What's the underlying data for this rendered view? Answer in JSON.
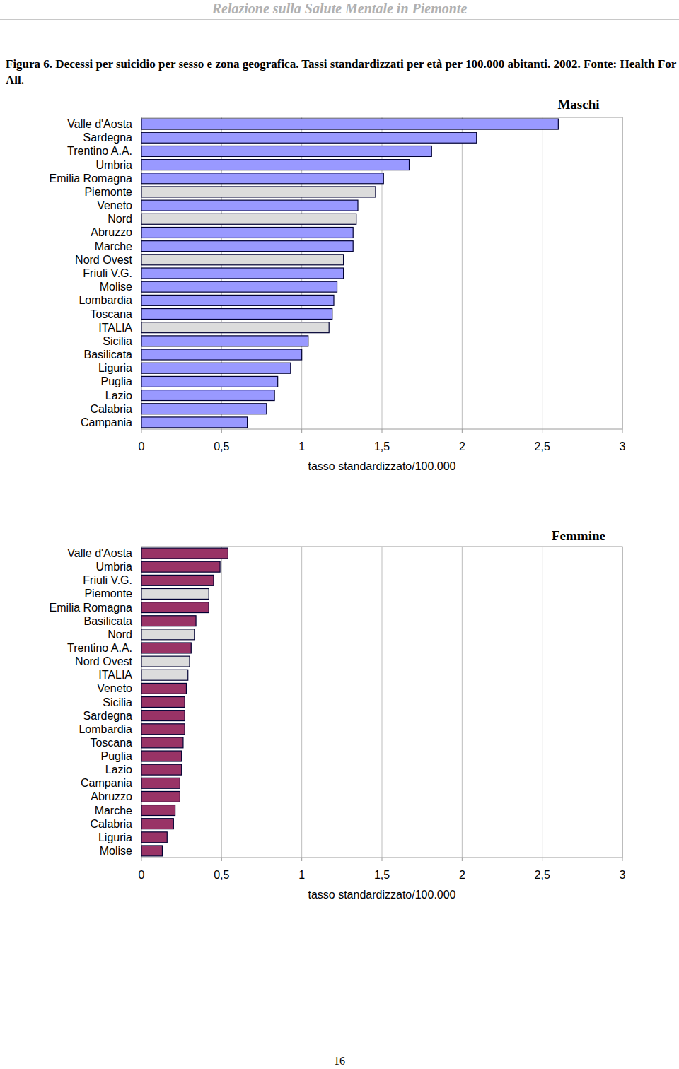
{
  "header": {
    "title": "Relazione sulla Salute Mentale in Piemonte"
  },
  "caption": "Figura 6. Decessi per suicidio per sesso e zona geografica. Tassi standardizzati per età per 100.000 abitanti. 2002. Fonte: Health For All.",
  "page_number": "16",
  "chart_data": [
    {
      "type": "bar",
      "title": "Maschi",
      "orientation": "horizontal",
      "grid": true,
      "x_label": "tasso standardizzato/100.000",
      "categories": [
        "Valle d'Aosta",
        "Sardegna",
        "Trentino A.A.",
        "Umbria",
        "Emilia Romagna",
        "Piemonte",
        "Veneto",
        "Nord",
        "Abruzzo",
        "Marche",
        "Nord Ovest",
        "Friuli V.G.",
        "Molise",
        "Lombardia",
        "Toscana",
        "ITALIA",
        "Sicilia",
        "Basilicata",
        "Liguria",
        "Puglia",
        "Lazio",
        "Calabria",
        "Campania"
      ],
      "values": [
        2.6,
        2.09,
        1.81,
        1.67,
        1.51,
        1.46,
        1.35,
        1.34,
        1.32,
        1.32,
        1.26,
        1.26,
        1.22,
        1.2,
        1.19,
        1.17,
        1.04,
        1.0,
        0.93,
        0.85,
        0.83,
        0.78,
        0.66
      ],
      "colors": [
        "#9999ff",
        "#9999ff",
        "#9999ff",
        "#9999ff",
        "#9999ff",
        "#dcdcdc",
        "#9999ff",
        "#dcdcdc",
        "#9999ff",
        "#9999ff",
        "#dcdcdc",
        "#9999ff",
        "#9999ff",
        "#9999ff",
        "#9999ff",
        "#dcdcdc",
        "#9999ff",
        "#9999ff",
        "#9999ff",
        "#9999ff",
        "#9999ff",
        "#9999ff",
        "#9999ff"
      ],
      "xlim": [
        0,
        3
      ],
      "xticks": [
        0,
        {
          "value": 0.5,
          "label": "0,5"
        },
        1,
        {
          "value": 1.5,
          "label": "1,5"
        },
        2,
        {
          "value": 2.5,
          "label": "2,5"
        },
        3
      ]
    },
    {
      "type": "bar",
      "title": "Femmine",
      "orientation": "horizontal",
      "grid": true,
      "x_label": "tasso standardizzato/100.000",
      "categories": [
        "Valle d'Aosta",
        "Umbria",
        "Friuli V.G.",
        "Piemonte",
        "Emilia Romagna",
        "Basilicata",
        "Nord",
        "Trentino A.A.",
        "Nord Ovest",
        "ITALIA",
        "Veneto",
        "Sicilia",
        "Sardegna",
        "Lombardia",
        "Toscana",
        "Puglia",
        "Lazio",
        "Campania",
        "Abruzzo",
        "Marche",
        "Calabria",
        "Liguria",
        "Molise"
      ],
      "values": [
        0.54,
        0.49,
        0.45,
        0.42,
        0.42,
        0.34,
        0.33,
        0.31,
        0.3,
        0.29,
        0.28,
        0.27,
        0.27,
        0.27,
        0.26,
        0.25,
        0.25,
        0.24,
        0.24,
        0.21,
        0.2,
        0.16,
        0.13
      ],
      "colors": [
        "#993366",
        "#993366",
        "#993366",
        "#dcdcdc",
        "#993366",
        "#993366",
        "#dcdcdc",
        "#993366",
        "#dcdcdc",
        "#dcdcdc",
        "#993366",
        "#993366",
        "#993366",
        "#993366",
        "#993366",
        "#993366",
        "#993366",
        "#993366",
        "#993366",
        "#993366",
        "#993366",
        "#993366",
        "#993366"
      ],
      "xlim": [
        0,
        3
      ],
      "xticks": [
        0,
        {
          "value": 0.5,
          "label": "0,5"
        },
        1,
        {
          "value": 1.5,
          "label": "1,5"
        },
        2,
        {
          "value": 2.5,
          "label": "2,5"
        },
        3
      ]
    }
  ]
}
